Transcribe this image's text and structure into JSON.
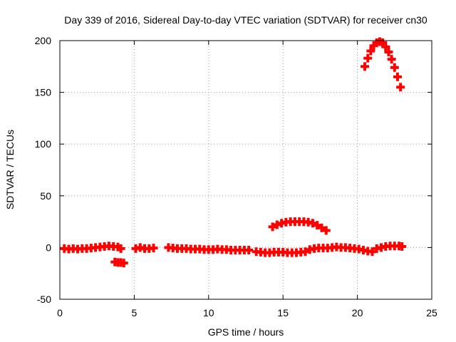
{
  "chart_data": {
    "type": "scatter",
    "title": "Day 339 of 2016, Sidereal Day-to-day VTEC variation (SDTVAR) for receiver cn30",
    "xlabel": "GPS time / hours",
    "ylabel": "SDTVAR / TECUs",
    "xlim": [
      0,
      25
    ],
    "ylim": [
      -50,
      200
    ],
    "xticks": [
      0,
      5,
      10,
      15,
      20,
      25
    ],
    "yticks": [
      -50,
      0,
      50,
      100,
      150,
      200
    ],
    "grid": true,
    "marker": "+",
    "color": "#ff0000",
    "series": [
      {
        "name": "SDTVAR",
        "points": [
          [
            0.3,
            -1
          ],
          [
            0.6,
            -1.5
          ],
          [
            0.9,
            -1
          ],
          [
            1.2,
            -1.5
          ],
          [
            1.5,
            -1
          ],
          [
            1.8,
            -1
          ],
          [
            2.1,
            -0.5
          ],
          [
            2.4,
            0
          ],
          [
            2.7,
            0.5
          ],
          [
            3.0,
            1
          ],
          [
            3.3,
            1.5
          ],
          [
            3.6,
            1
          ],
          [
            3.9,
            0.5
          ],
          [
            4.1,
            -1
          ],
          [
            3.7,
            -14
          ],
          [
            3.9,
            -14.5
          ],
          [
            4.1,
            -14.5
          ],
          [
            4.3,
            -15
          ],
          [
            5.1,
            -1
          ],
          [
            5.4,
            0
          ],
          [
            5.7,
            -1
          ],
          [
            6.0,
            -1
          ],
          [
            6.3,
            -0.5
          ],
          [
            7.3,
            0
          ],
          [
            7.6,
            -0.5
          ],
          [
            7.9,
            -1
          ],
          [
            8.2,
            -1
          ],
          [
            8.5,
            -1
          ],
          [
            8.8,
            -1.5
          ],
          [
            9.1,
            -1.5
          ],
          [
            9.4,
            -1.5
          ],
          [
            9.7,
            -2
          ],
          [
            10.0,
            -2
          ],
          [
            10.3,
            -2
          ],
          [
            10.6,
            -1.5
          ],
          [
            10.9,
            -2
          ],
          [
            11.2,
            -2
          ],
          [
            11.5,
            -2.5
          ],
          [
            11.8,
            -2.5
          ],
          [
            12.1,
            -2.5
          ],
          [
            12.4,
            -2.5
          ],
          [
            12.7,
            -2.5
          ],
          [
            13.2,
            -4
          ],
          [
            13.5,
            -4.5
          ],
          [
            13.8,
            -5
          ],
          [
            14.1,
            -5
          ],
          [
            14.4,
            -4.5
          ],
          [
            14.7,
            -4.5
          ],
          [
            15.0,
            -4.5
          ],
          [
            15.3,
            -5
          ],
          [
            15.6,
            -5
          ],
          [
            15.9,
            -5
          ],
          [
            16.2,
            -4.5
          ],
          [
            16.5,
            -4
          ],
          [
            16.8,
            -2
          ],
          [
            17.1,
            -1
          ],
          [
            17.4,
            -0.5
          ],
          [
            17.7,
            -0.5
          ],
          [
            18.0,
            -0.5
          ],
          [
            18.3,
            0
          ],
          [
            18.6,
            0.5
          ],
          [
            18.9,
            0
          ],
          [
            19.2,
            0
          ],
          [
            19.5,
            -0.5
          ],
          [
            19.8,
            -1
          ],
          [
            20.1,
            -1.5
          ],
          [
            20.4,
            -2.5
          ],
          [
            20.7,
            -3.5
          ],
          [
            21.0,
            -4
          ],
          [
            21.3,
            -1
          ],
          [
            21.6,
            0
          ],
          [
            21.9,
            1
          ],
          [
            22.2,
            1.5
          ],
          [
            22.5,
            1.5
          ],
          [
            22.8,
            1.5
          ],
          [
            23.0,
            1
          ],
          [
            14.3,
            20
          ],
          [
            14.6,
            22
          ],
          [
            14.9,
            23.5
          ],
          [
            15.2,
            24.5
          ],
          [
            15.5,
            25
          ],
          [
            15.8,
            25
          ],
          [
            16.1,
            25
          ],
          [
            16.4,
            25
          ],
          [
            16.7,
            24.5
          ],
          [
            17.0,
            23.5
          ],
          [
            17.3,
            21.5
          ],
          [
            17.6,
            19
          ],
          [
            17.9,
            16.5
          ],
          [
            20.5,
            175
          ],
          [
            20.7,
            183
          ],
          [
            20.9,
            190
          ],
          [
            21.1,
            195
          ],
          [
            21.3,
            198
          ],
          [
            21.5,
            199
          ],
          [
            21.7,
            198
          ],
          [
            21.9,
            194
          ],
          [
            22.1,
            189
          ],
          [
            22.3,
            182
          ],
          [
            22.5,
            174
          ],
          [
            22.7,
            165
          ],
          [
            22.9,
            155
          ]
        ]
      }
    ]
  }
}
